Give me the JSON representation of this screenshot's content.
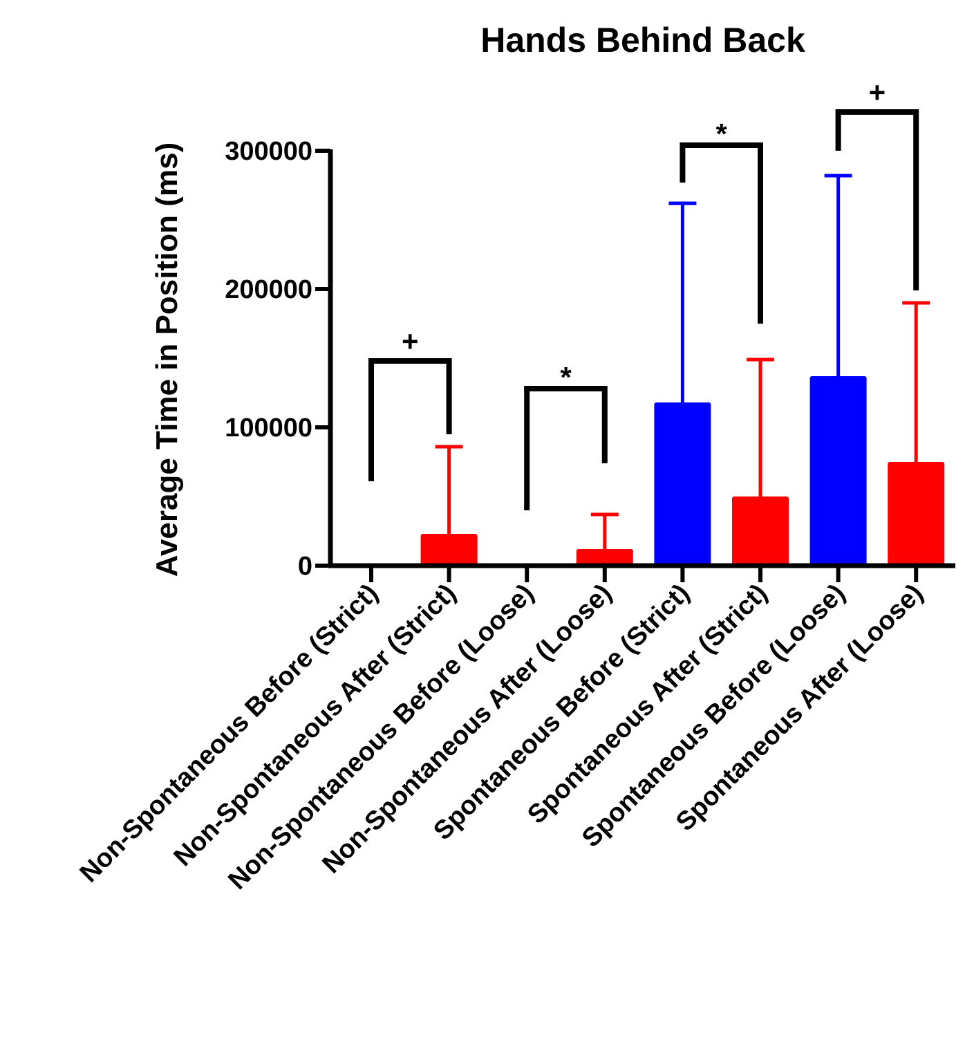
{
  "chart_data": {
    "type": "bar",
    "title": "Hands Behind Back",
    "xlabel": "",
    "ylabel": "Average Time in Position (ms)",
    "ylim": [
      0,
      300000
    ],
    "yticks": [
      0,
      100000,
      200000,
      300000
    ],
    "ytick_labels": [
      "0",
      "100000",
      "200000",
      "300000"
    ],
    "categories": [
      "Non-Spontaneous Before (Strict)",
      "Non-Spontaneous After (Strict)",
      "Non-Spontaneous Before (Loose)",
      "Non-Spontaneous After (Loose)",
      "Spontaneous Before (Strict)",
      "Spontaneous After (Strict)",
      "Spontaneous Before (Loose)",
      "Spontaneous After (Loose)"
    ],
    "values": [
      0,
      23000,
      0,
      12000,
      118000,
      50000,
      137000,
      75000
    ],
    "error_upper": [
      0,
      86000,
      0,
      37000,
      262000,
      149000,
      282000,
      190000
    ],
    "colors": [
      "#0000ff",
      "#ff0000",
      "#0000ff",
      "#ff0000",
      "#0000ff",
      "#ff0000",
      "#0000ff",
      "#ff0000"
    ],
    "grid": false,
    "legend": "none",
    "annotations": [
      {
        "pair": [
          0,
          1
        ],
        "label": "+",
        "bracket_y": 148000,
        "left_bottom": 61000,
        "right_bottom": 95000
      },
      {
        "pair": [
          2,
          3
        ],
        "label": "*",
        "bracket_y": 128000,
        "left_bottom": 40000,
        "right_bottom": 74000
      },
      {
        "pair": [
          4,
          5
        ],
        "label": "*",
        "bracket_y": 304000,
        "left_bottom": 277000,
        "right_bottom": 175000
      },
      {
        "pair": [
          6,
          7
        ],
        "label": "+",
        "bracket_y": 328000,
        "left_bottom": 300000,
        "right_bottom": 199000
      }
    ]
  }
}
